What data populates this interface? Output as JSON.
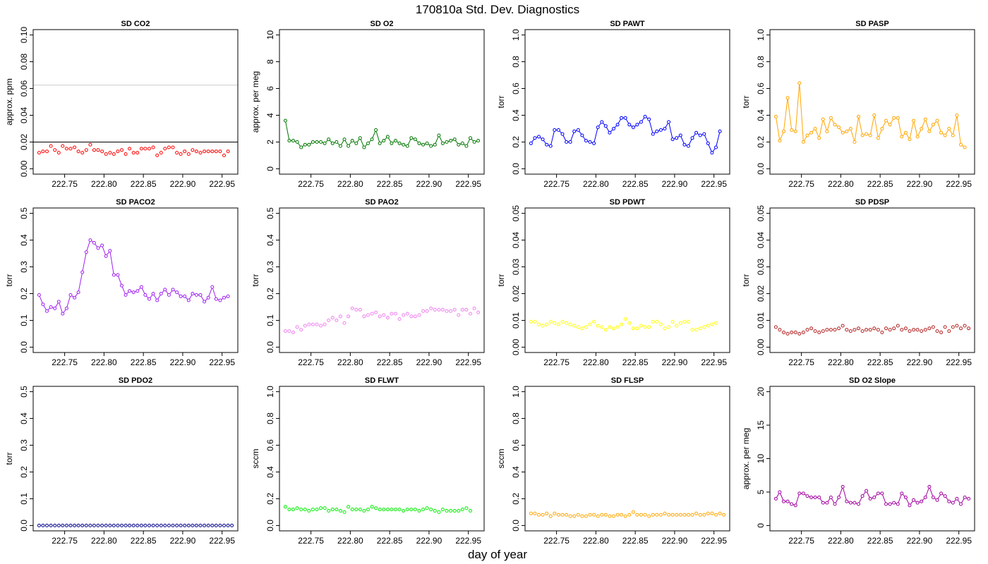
{
  "figure": {
    "title": "170810a   Std. Dev. Diagnostics",
    "xlabel": "day of year"
  },
  "chart_data": [
    {
      "type": "scatter",
      "title": "SD CO2",
      "ylabel": "approx. ppm",
      "color": "#ff0000",
      "xlim": [
        222.71,
        222.97
      ],
      "ylim": [
        0,
        0.1
      ],
      "xticks": [
        "222.75",
        "222.80",
        "222.85",
        "222.90",
        "222.95"
      ],
      "yticks": [
        "0.00",
        "0.02",
        "0.04",
        "0.06",
        "0.08",
        "0.10"
      ],
      "hlines": [
        {
          "y": 0.02,
          "color": "#000000"
        },
        {
          "y": 0.0625,
          "color": "#cccccc"
        }
      ],
      "connect": false,
      "series": [
        {
          "x0": 222.7175,
          "dx": 0.005,
          "values": [
            0.012,
            0.013,
            0.013,
            0.017,
            0.014,
            0.012,
            0.017,
            0.015,
            0.015,
            0.016,
            0.013,
            0.012,
            0.014,
            0.018,
            0.014,
            0.014,
            0.013,
            0.011,
            0.012,
            0.011,
            0.013,
            0.014,
            0.011,
            0.015,
            0.012,
            0.012,
            0.015,
            0.015,
            0.015,
            0.016,
            0.01,
            0.012,
            0.015,
            0.016,
            0.016,
            0.012,
            0.011,
            0.013,
            0.011,
            0.014,
            0.013,
            0.012,
            0.013,
            0.013,
            0.013,
            0.013,
            0.013,
            0.01,
            0.013
          ]
        }
      ]
    },
    {
      "type": "line",
      "title": "SD O2",
      "ylabel": "approx. per meg",
      "color": "#007700",
      "xlim": [
        222.71,
        222.97
      ],
      "ylim": [
        0,
        10
      ],
      "xticks": [
        "222.75",
        "222.80",
        "222.85",
        "222.90",
        "222.95"
      ],
      "yticks": [
        "0",
        "2",
        "4",
        "6",
        "8",
        "10"
      ],
      "connect": true,
      "series": [
        {
          "x0": 222.7175,
          "dx": 0.005,
          "values": [
            3.6,
            2.1,
            2.1,
            2.0,
            1.6,
            1.8,
            1.8,
            2.0,
            2.0,
            2.0,
            1.9,
            2.2,
            1.9,
            2.0,
            1.7,
            2.2,
            1.7,
            2.1,
            1.9,
            2.3,
            1.6,
            1.9,
            2.2,
            2.9,
            1.9,
            2.1,
            2.4,
            1.9,
            2.1,
            1.9,
            1.8,
            1.7,
            2.3,
            2.2,
            1.9,
            1.8,
            1.9,
            1.7,
            1.8,
            2.5,
            1.9,
            2.0,
            2.1,
            2.2,
            1.8,
            1.9,
            1.7,
            2.3,
            2.0,
            2.1
          ]
        }
      ]
    },
    {
      "type": "line",
      "title": "SD PAWT",
      "ylabel": "torr",
      "color": "#0000ff",
      "xlim": [
        222.71,
        222.97
      ],
      "ylim": [
        0,
        1
      ],
      "xticks": [
        "222.75",
        "222.80",
        "222.85",
        "222.90",
        "222.95"
      ],
      "yticks": [
        "0.0",
        "0.2",
        "0.4",
        "0.6",
        "0.8",
        "1.0"
      ],
      "connect": true,
      "series": [
        {
          "x0": 222.7175,
          "dx": 0.005,
          "values": [
            0.19,
            0.23,
            0.24,
            0.22,
            0.18,
            0.17,
            0.29,
            0.29,
            0.26,
            0.2,
            0.2,
            0.28,
            0.29,
            0.25,
            0.21,
            0.2,
            0.19,
            0.31,
            0.35,
            0.32,
            0.27,
            0.3,
            0.33,
            0.38,
            0.38,
            0.33,
            0.31,
            0.33,
            0.35,
            0.39,
            0.37,
            0.26,
            0.28,
            0.29,
            0.3,
            0.35,
            0.22,
            0.23,
            0.25,
            0.18,
            0.17,
            0.23,
            0.27,
            0.25,
            0.26,
            0.19,
            0.12,
            0.16,
            0.28
          ]
        }
      ]
    },
    {
      "type": "line",
      "title": "SD PASP",
      "ylabel": "torr",
      "color": "#ffa500",
      "xlim": [
        222.71,
        222.97
      ],
      "ylim": [
        0,
        1
      ],
      "xticks": [
        "222.75",
        "222.80",
        "222.85",
        "222.90",
        "222.95"
      ],
      "yticks": [
        "0.0",
        "0.2",
        "0.4",
        "0.6",
        "0.8",
        "1.0"
      ],
      "connect": true,
      "series": [
        {
          "x0": 222.7175,
          "dx": 0.005,
          "values": [
            0.39,
            0.21,
            0.28,
            0.53,
            0.29,
            0.28,
            0.64,
            0.2,
            0.25,
            0.27,
            0.3,
            0.23,
            0.37,
            0.28,
            0.38,
            0.33,
            0.31,
            0.27,
            0.28,
            0.3,
            0.2,
            0.39,
            0.25,
            0.26,
            0.25,
            0.4,
            0.23,
            0.3,
            0.36,
            0.33,
            0.38,
            0.38,
            0.24,
            0.27,
            0.22,
            0.36,
            0.24,
            0.3,
            0.37,
            0.28,
            0.33,
            0.36,
            0.27,
            0.25,
            0.3,
            0.25,
            0.4,
            0.18,
            0.16
          ]
        }
      ]
    },
    {
      "type": "line",
      "title": "SD PACO2",
      "ylabel": "torr",
      "color": "#a020f0",
      "xlim": [
        222.71,
        222.97
      ],
      "ylim": [
        0,
        0.5
      ],
      "xticks": [
        "222.75",
        "222.80",
        "222.85",
        "222.90",
        "222.95"
      ],
      "yticks": [
        "0.0",
        "0.1",
        "0.2",
        "0.3",
        "0.4",
        "0.5"
      ],
      "connect": true,
      "series": [
        {
          "x0": 222.7175,
          "dx": 0.005,
          "values": [
            0.195,
            0.16,
            0.135,
            0.15,
            0.145,
            0.17,
            0.125,
            0.145,
            0.195,
            0.185,
            0.205,
            0.28,
            0.355,
            0.4,
            0.39,
            0.37,
            0.38,
            0.34,
            0.36,
            0.27,
            0.27,
            0.23,
            0.195,
            0.21,
            0.205,
            0.21,
            0.225,
            0.195,
            0.18,
            0.2,
            0.175,
            0.2,
            0.215,
            0.195,
            0.215,
            0.205,
            0.19,
            0.19,
            0.175,
            0.2,
            0.195,
            0.195,
            0.17,
            0.185,
            0.225,
            0.18,
            0.175,
            0.185,
            0.19
          ]
        }
      ]
    },
    {
      "type": "scatter",
      "title": "SD PAO2",
      "ylabel": "torr",
      "color": "#ee82ee",
      "xlim": [
        222.71,
        222.97
      ],
      "ylim": [
        0,
        0.5
      ],
      "xticks": [
        "222.75",
        "222.80",
        "222.85",
        "222.90",
        "222.95"
      ],
      "yticks": [
        "0.0",
        "0.1",
        "0.2",
        "0.3",
        "0.4",
        "0.5"
      ],
      "connect": false,
      "series": [
        {
          "x0": 222.7175,
          "dx": 0.005,
          "values": [
            0.06,
            0.06,
            0.055,
            0.075,
            0.065,
            0.08,
            0.085,
            0.085,
            0.085,
            0.08,
            0.085,
            0.1,
            0.11,
            0.1,
            0.115,
            0.09,
            0.115,
            0.145,
            0.14,
            0.14,
            0.115,
            0.12,
            0.125,
            0.13,
            0.115,
            0.12,
            0.11,
            0.125,
            0.125,
            0.105,
            0.12,
            0.125,
            0.115,
            0.115,
            0.12,
            0.135,
            0.135,
            0.145,
            0.14,
            0.14,
            0.14,
            0.135,
            0.135,
            0.14,
            0.12,
            0.14,
            0.14,
            0.125,
            0.145,
            0.13
          ]
        }
      ]
    },
    {
      "type": "scatter",
      "title": "SD PDWT",
      "ylabel": "torr",
      "color": "#ffff00",
      "xlim": [
        222.71,
        222.97
      ],
      "ylim": [
        0,
        0.05
      ],
      "xticks": [
        "222.75",
        "222.80",
        "222.85",
        "222.90",
        "222.95"
      ],
      "yticks": [
        "0.00",
        "0.01",
        "0.02",
        "0.03",
        "0.04",
        "0.05"
      ],
      "connect": false,
      "series": [
        {
          "x0": 222.7175,
          "dx": 0.005,
          "values": [
            0.0095,
            0.0095,
            0.0085,
            0.008,
            0.0085,
            0.0095,
            0.009,
            0.0085,
            0.0095,
            0.009,
            0.0085,
            0.008,
            0.0075,
            0.007,
            0.0075,
            0.0085,
            0.0095,
            0.008,
            0.0075,
            0.0065,
            0.0075,
            0.007,
            0.0075,
            0.0085,
            0.0105,
            0.009,
            0.007,
            0.007,
            0.008,
            0.0075,
            0.0075,
            0.0095,
            0.0095,
            0.0085,
            0.007,
            0.0075,
            0.0095,
            0.008,
            0.009,
            0.0095,
            0.0095,
            0.0065,
            0.0065,
            0.007,
            0.0075,
            0.008,
            0.0085,
            0.009
          ]
        }
      ]
    },
    {
      "type": "scatter",
      "title": "SD PDSP",
      "ylabel": "torr",
      "color": "#b22222",
      "xlim": [
        222.71,
        222.97
      ],
      "ylim": [
        0,
        0.05
      ],
      "xticks": [
        "222.75",
        "222.80",
        "222.85",
        "222.90",
        "222.95"
      ],
      "yticks": [
        "0.00",
        "0.01",
        "0.02",
        "0.03",
        "0.04",
        "0.05"
      ],
      "connect": false,
      "series": [
        {
          "x0": 222.7175,
          "dx": 0.005,
          "values": [
            0.0075,
            0.0065,
            0.0055,
            0.005,
            0.0055,
            0.0055,
            0.005,
            0.0055,
            0.0065,
            0.007,
            0.006,
            0.0055,
            0.006,
            0.0065,
            0.0065,
            0.0065,
            0.007,
            0.008,
            0.0065,
            0.006,
            0.0065,
            0.007,
            0.006,
            0.0065,
            0.0065,
            0.007,
            0.0065,
            0.0055,
            0.007,
            0.0065,
            0.007,
            0.008,
            0.0065,
            0.007,
            0.006,
            0.0065,
            0.0065,
            0.006,
            0.0065,
            0.007,
            0.0075,
            0.006,
            0.0055,
            0.0075,
            0.006,
            0.0075,
            0.008,
            0.007,
            0.008,
            0.007
          ]
        }
      ]
    },
    {
      "type": "scatter",
      "title": "SD PDO2",
      "ylabel": "torr",
      "color": "#00008b",
      "xlim": [
        222.71,
        222.97
      ],
      "ylim": [
        0,
        0.5
      ],
      "xticks": [
        "222.75",
        "222.80",
        "222.85",
        "222.90",
        "222.95"
      ],
      "yticks": [
        "0.0",
        "0.1",
        "0.2",
        "0.3",
        "0.4",
        "0.5"
      ],
      "connect": false,
      "series": [
        {
          "x0": 222.7175,
          "dx": 0.005,
          "values": [
            0,
            0,
            0,
            0,
            0,
            0,
            0,
            0,
            0,
            0,
            0,
            0,
            0,
            0,
            0,
            0,
            0,
            0,
            0,
            0,
            0,
            0,
            0,
            0,
            0,
            0,
            0,
            0,
            0,
            0,
            0,
            0,
            0,
            0,
            0,
            0,
            0,
            0,
            0,
            0,
            0,
            0,
            0,
            0,
            0,
            0,
            0,
            0,
            0,
            0
          ]
        }
      ]
    },
    {
      "type": "scatter",
      "title": "SD FLWT",
      "ylabel": "sccm",
      "color": "#00ee00",
      "xlim": [
        222.71,
        222.97
      ],
      "ylim": [
        0,
        1
      ],
      "xticks": [
        "222.75",
        "222.80",
        "222.85",
        "222.90",
        "222.95"
      ],
      "yticks": [
        "0.0",
        "0.2",
        "0.4",
        "0.6",
        "0.8",
        "1.0"
      ],
      "connect": false,
      "series": [
        {
          "x0": 222.7175,
          "dx": 0.005,
          "values": [
            0.14,
            0.12,
            0.12,
            0.13,
            0.12,
            0.12,
            0.11,
            0.12,
            0.12,
            0.13,
            0.13,
            0.11,
            0.12,
            0.12,
            0.11,
            0.1,
            0.14,
            0.12,
            0.12,
            0.12,
            0.11,
            0.12,
            0.14,
            0.13,
            0.12,
            0.12,
            0.12,
            0.12,
            0.12,
            0.12,
            0.11,
            0.12,
            0.12,
            0.12,
            0.11,
            0.12,
            0.13,
            0.12,
            0.11,
            0.1,
            0.12,
            0.11,
            0.11,
            0.11,
            0.11,
            0.12,
            0.13,
            0.11
          ]
        }
      ]
    },
    {
      "type": "scatter",
      "title": "SD FLSP",
      "ylabel": "sccm",
      "color": "#ffa500",
      "xlim": [
        222.71,
        222.97
      ],
      "ylim": [
        0,
        1
      ],
      "xticks": [
        "222.75",
        "222.80",
        "222.85",
        "222.90",
        "222.95"
      ],
      "yticks": [
        "0.0",
        "0.2",
        "0.4",
        "0.6",
        "0.8",
        "1.0"
      ],
      "connect": false,
      "series": [
        {
          "x0": 222.7175,
          "dx": 0.005,
          "values": [
            0.09,
            0.09,
            0.08,
            0.08,
            0.09,
            0.07,
            0.09,
            0.08,
            0.08,
            0.08,
            0.07,
            0.07,
            0.08,
            0.07,
            0.07,
            0.08,
            0.08,
            0.07,
            0.08,
            0.08,
            0.07,
            0.07,
            0.08,
            0.08,
            0.07,
            0.08,
            0.1,
            0.08,
            0.08,
            0.08,
            0.07,
            0.08,
            0.08,
            0.08,
            0.09,
            0.08,
            0.08,
            0.08,
            0.08,
            0.08,
            0.08,
            0.08,
            0.09,
            0.08,
            0.08,
            0.09,
            0.09,
            0.08,
            0.09,
            0.08
          ]
        }
      ]
    },
    {
      "type": "line",
      "title": "SD O2 Slope",
      "ylabel": "approx. per meg",
      "color": "#a000a0",
      "xlim": [
        222.71,
        222.97
      ],
      "ylim": [
        0,
        20
      ],
      "xticks": [
        "222.75",
        "222.80",
        "222.85",
        "222.90",
        "222.95"
      ],
      "yticks": [
        "0",
        "5",
        "10",
        "15",
        "20"
      ],
      "connect": true,
      "series": [
        {
          "x0": 222.7175,
          "dx": 0.005,
          "values": [
            4.0,
            5.0,
            3.6,
            3.6,
            3.2,
            3.0,
            4.8,
            4.8,
            4.4,
            4.2,
            4.2,
            4.2,
            3.4,
            3.4,
            4.2,
            3.2,
            4.2,
            5.8,
            3.6,
            3.4,
            3.4,
            3.2,
            4.4,
            5.2,
            4.0,
            4.2,
            4.8,
            4.8,
            3.2,
            3.2,
            3.4,
            3.2,
            4.8,
            4.2,
            3.0,
            3.8,
            3.4,
            3.6,
            4.2,
            5.8,
            4.2,
            3.8,
            4.8,
            4.4,
            3.6,
            3.4,
            4.0,
            3.2,
            4.2,
            4.0
          ]
        }
      ]
    }
  ]
}
